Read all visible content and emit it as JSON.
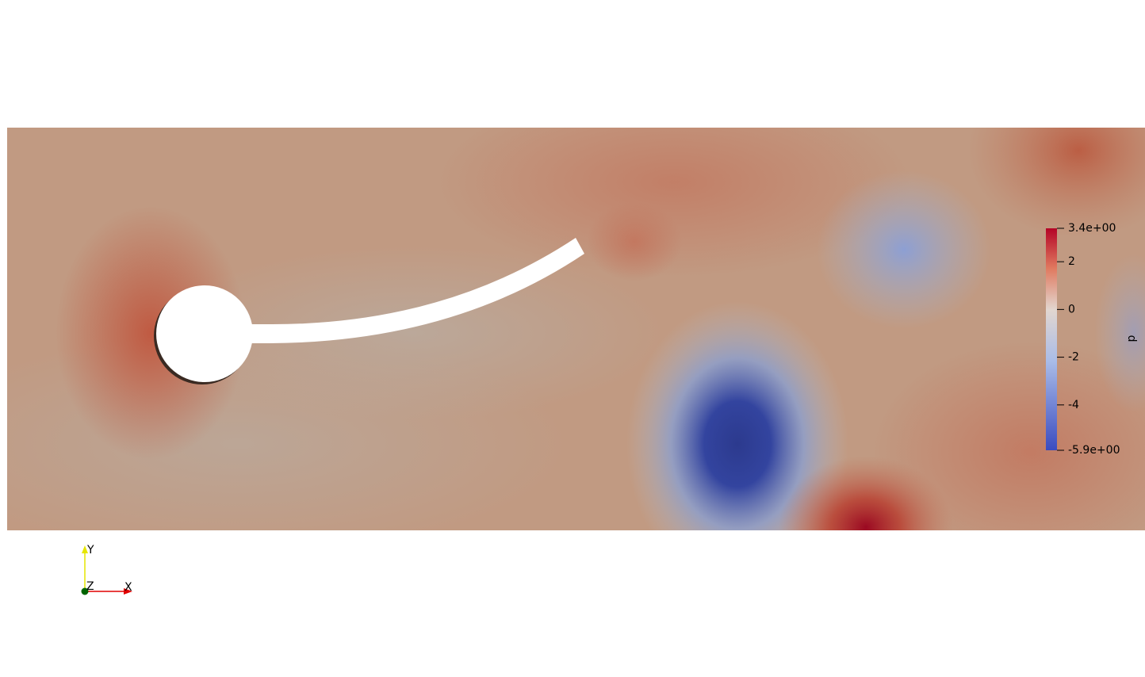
{
  "colorbar": {
    "title": "p",
    "range": [
      -5.9,
      3.4
    ],
    "ticks": [
      {
        "value": 3.4,
        "label": "3.4e+00"
      },
      2,
      0,
      -2,
      -4,
      {
        "value": -5.9,
        "label": "-5.9e+00"
      }
    ]
  },
  "axes_triad": {
    "y": "Y",
    "z": "Z",
    "x": "X"
  }
}
